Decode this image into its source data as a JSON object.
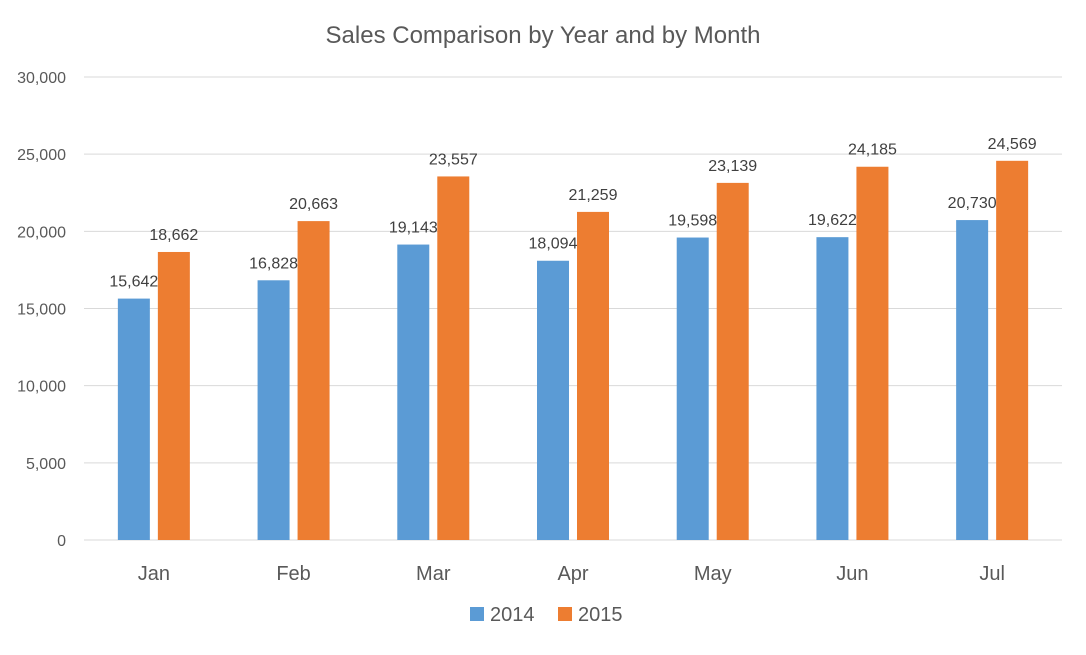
{
  "chart_data": {
    "type": "bar",
    "title": "Sales Comparison by Year and by Month",
    "xlabel": "",
    "ylabel": "",
    "categories": [
      "Jan",
      "Feb",
      "Mar",
      "Apr",
      "May",
      "Jun",
      "Jul"
    ],
    "series": [
      {
        "name": "2014",
        "color": "#5b9bd5",
        "values": [
          15642,
          16828,
          19143,
          18094,
          19598,
          19622,
          20730
        ]
      },
      {
        "name": "2015",
        "color": "#ed7d31",
        "values": [
          18662,
          20663,
          23557,
          21259,
          23139,
          24185,
          24569
        ]
      }
    ],
    "ylim": [
      0,
      30000
    ],
    "yticks": [
      0,
      5000,
      10000,
      15000,
      20000,
      25000,
      30000
    ],
    "ytick_labels": [
      "0",
      "5,000",
      "10,000",
      "15,000",
      "20,000",
      "25,000",
      "30,000"
    ],
    "data_labels": [
      [
        "15,642",
        "16,828",
        "19,143",
        "18,094",
        "19,598",
        "19,622",
        "20,730"
      ],
      [
        "18,662",
        "20,663",
        "23,557",
        "21,259",
        "23,139",
        "24,185",
        "24,569"
      ]
    ],
    "grid": true,
    "legend": "bottom"
  }
}
